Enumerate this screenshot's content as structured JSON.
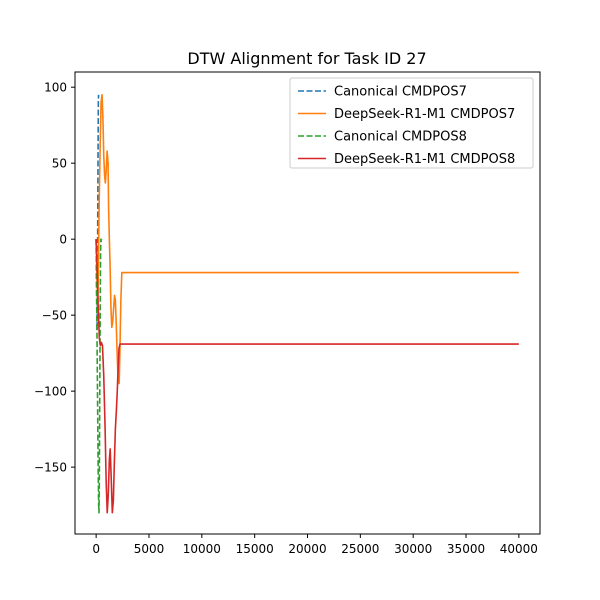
{
  "chart_data": {
    "type": "line",
    "title": "DTW Alignment for Task ID 27",
    "xlabel": "",
    "ylabel": "",
    "xlim": [
      -2000,
      42000
    ],
    "ylim": [
      -194,
      110
    ],
    "x_ticks": [
      0,
      5000,
      10000,
      15000,
      20000,
      25000,
      30000,
      35000,
      40000
    ],
    "x_tick_labels": [
      "0",
      "5000",
      "10000",
      "15000",
      "20000",
      "25000",
      "30000",
      "35000",
      "40000"
    ],
    "y_ticks": [
      100,
      50,
      0,
      -50,
      -100,
      -150
    ],
    "y_tick_labels": [
      "100",
      "50",
      "0",
      "−50",
      "−100",
      "−150"
    ],
    "grid": false,
    "legend_position": "top-right",
    "series": [
      {
        "name": "Canonical CMDPOS7",
        "color": "#1f77b4",
        "dash": "dashed",
        "points": [
          [
            0,
            0
          ],
          [
            30,
            -20
          ],
          [
            60,
            -45
          ],
          [
            90,
            -60
          ],
          [
            110,
            -45
          ],
          [
            130,
            -20
          ],
          [
            150,
            10
          ],
          [
            170,
            40
          ],
          [
            190,
            65
          ],
          [
            210,
            90
          ],
          [
            230,
            95
          ]
        ]
      },
      {
        "name": "DeepSeek-R1-M1 CMDPOS7",
        "color": "#ff7f0e",
        "dash": "solid",
        "points": [
          [
            0,
            0
          ],
          [
            80,
            -25
          ],
          [
            150,
            -45
          ],
          [
            210,
            -20
          ],
          [
            290,
            25
          ],
          [
            390,
            65
          ],
          [
            470,
            90
          ],
          [
            560,
            95
          ],
          [
            640,
            80
          ],
          [
            720,
            55
          ],
          [
            800,
            42
          ],
          [
            870,
            37
          ],
          [
            950,
            45
          ],
          [
            1040,
            58
          ],
          [
            1130,
            50
          ],
          [
            1180,
            20
          ],
          [
            1250,
            0
          ],
          [
            1330,
            -20
          ],
          [
            1400,
            -45
          ],
          [
            1480,
            -58
          ],
          [
            1560,
            -55
          ],
          [
            1660,
            -45
          ],
          [
            1740,
            -37
          ],
          [
            1820,
            -40
          ],
          [
            1900,
            -55
          ],
          [
            2000,
            -78
          ],
          [
            2080,
            -92
          ],
          [
            2180,
            -95
          ],
          [
            2260,
            -70
          ],
          [
            2340,
            -40
          ],
          [
            2430,
            -22
          ],
          [
            40000,
            -22
          ]
        ]
      },
      {
        "name": "Canonical CMDPOS8",
        "color": "#2ca02c",
        "dash": "dashed",
        "points": [
          [
            0,
            0
          ],
          [
            40,
            -30
          ],
          [
            90,
            -70
          ],
          [
            140,
            -110
          ],
          [
            190,
            -150
          ],
          [
            240,
            -175
          ],
          [
            270,
            -180
          ],
          [
            300,
            -160
          ],
          [
            330,
            -120
          ],
          [
            360,
            -80
          ],
          [
            390,
            -40
          ],
          [
            420,
            -10
          ],
          [
            450,
            0
          ],
          [
            480,
            -2
          ],
          [
            510,
            0
          ]
        ]
      },
      {
        "name": "DeepSeek-R1-M1 CMDPOS8",
        "color": "#d62728",
        "dash": "solid",
        "points": [
          [
            0,
            0
          ],
          [
            100,
            -20
          ],
          [
            200,
            -45
          ],
          [
            300,
            -65
          ],
          [
            400,
            -70
          ],
          [
            500,
            -68
          ],
          [
            600,
            -70
          ],
          [
            720,
            -90
          ],
          [
            850,
            -125
          ],
          [
            950,
            -160
          ],
          [
            1050,
            -180
          ],
          [
            1150,
            -168
          ],
          [
            1250,
            -145
          ],
          [
            1330,
            -138
          ],
          [
            1430,
            -158
          ],
          [
            1530,
            -180
          ],
          [
            1630,
            -172
          ],
          [
            1720,
            -148
          ],
          [
            1820,
            -125
          ],
          [
            1920,
            -112
          ],
          [
            2000,
            -100
          ],
          [
            2080,
            -85
          ],
          [
            2160,
            -72
          ],
          [
            2260,
            -69
          ],
          [
            2400,
            -69
          ],
          [
            40000,
            -69
          ]
        ]
      }
    ]
  }
}
